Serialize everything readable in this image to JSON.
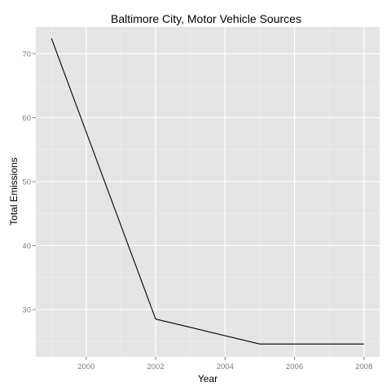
{
  "chart_data": {
    "type": "line",
    "title": "Baltimore City,  Motor Vehicle Sources",
    "xlabel": "Year",
    "ylabel": "Total Emissions",
    "x": [
      1999,
      2002,
      2005,
      2008
    ],
    "series": [
      {
        "values": [
          72.4,
          28.5,
          24.6,
          24.6
        ]
      }
    ],
    "xlim": [
      1998.55,
      2008.45
    ],
    "ylim": [
      22.6,
      74.2
    ],
    "xticks": [
      2000,
      2002,
      2004,
      2006,
      2008
    ],
    "yticks": [
      30,
      40,
      50,
      60,
      70
    ],
    "xtick_labels": [
      "2000",
      "2002",
      "2004",
      "2006",
      "2008"
    ],
    "ytick_labels": [
      "30",
      "40",
      "50",
      "60",
      "70"
    ],
    "grid": true,
    "colors": {
      "panel_background": "#e5e5e5",
      "grid_major": "#ffffff",
      "grid_minor": "#f2f2f2",
      "line": "#000000"
    }
  }
}
